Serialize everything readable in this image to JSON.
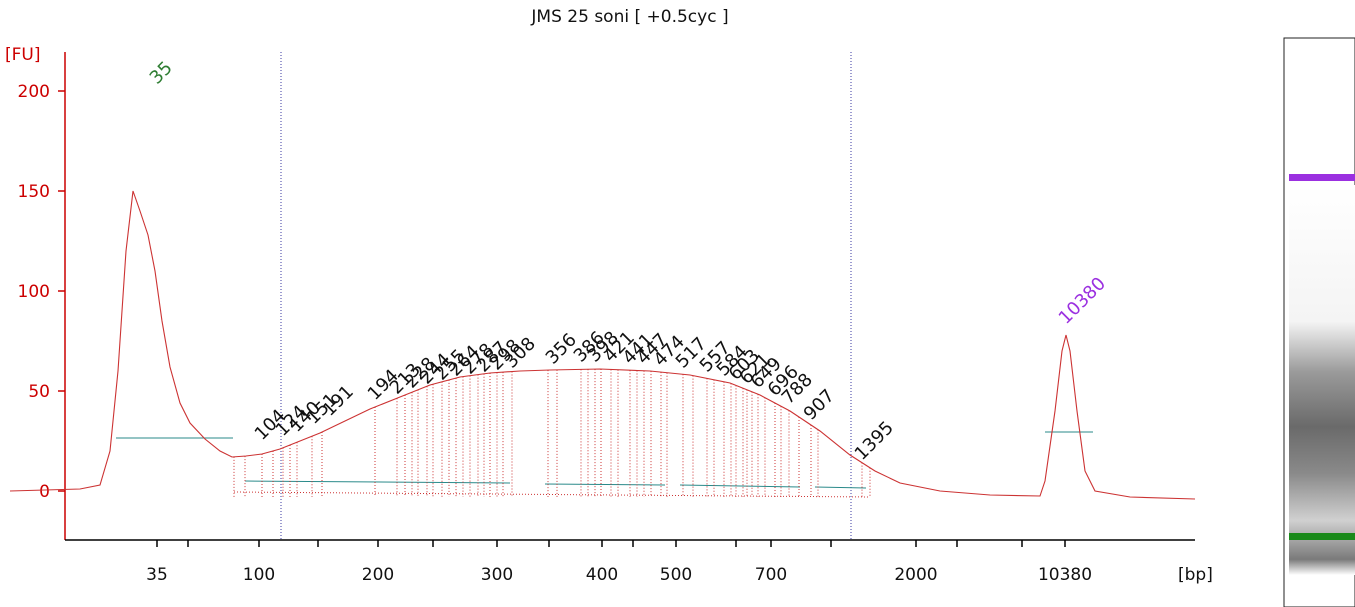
{
  "chart_data": {
    "type": "line",
    "title": "JMS 25 soni  [ +0.5cyc ]",
    "ylabel": "[FU]",
    "xlabel": "[bp]",
    "y_ticks": [
      0,
      50,
      100,
      150,
      200
    ],
    "x_ticks": [
      "35",
      "100",
      "200",
      "300",
      "400",
      "500",
      "700",
      "2000",
      "10380"
    ],
    "ylim": [
      -25,
      218
    ],
    "grid": false,
    "series": [
      {
        "values": [
          [
            10,
            0
          ],
          [
            80,
            1
          ],
          [
            100,
            3
          ],
          [
            110,
            20
          ],
          [
            118,
            60
          ],
          [
            126,
            120
          ],
          [
            133,
            150
          ],
          [
            140,
            140
          ],
          [
            148,
            128
          ],
          [
            155,
            110
          ],
          [
            162,
            85
          ],
          [
            170,
            62
          ],
          [
            180,
            44
          ],
          [
            190,
            34
          ],
          [
            205,
            26
          ],
          [
            220,
            20
          ],
          [
            232,
            17
          ],
          [
            246,
            17.5
          ],
          [
            262,
            18.5
          ],
          [
            280,
            21
          ],
          [
            300,
            25
          ],
          [
            320,
            29
          ],
          [
            345,
            35
          ],
          [
            370,
            41
          ],
          [
            400,
            47
          ],
          [
            430,
            53
          ],
          [
            460,
            57
          ],
          [
            490,
            59
          ],
          [
            520,
            60
          ],
          [
            550,
            60.5
          ],
          [
            600,
            61
          ],
          [
            650,
            60
          ],
          [
            690,
            58
          ],
          [
            730,
            54
          ],
          [
            760,
            48
          ],
          [
            790,
            40
          ],
          [
            820,
            30
          ],
          [
            850,
            18
          ],
          [
            875,
            10
          ],
          [
            900,
            4
          ],
          [
            940,
            0
          ],
          [
            990,
            -2
          ],
          [
            1040,
            -2.5
          ],
          [
            1045,
            5
          ],
          [
            1055,
            40
          ],
          [
            1062,
            70
          ],
          [
            1066,
            78
          ],
          [
            1070,
            70
          ],
          [
            1077,
            40
          ],
          [
            1085,
            10
          ],
          [
            1095,
            0
          ],
          [
            1130,
            -3
          ],
          [
            1195,
            -4
          ]
        ]
      }
    ],
    "peaks": [
      {
        "label": "35",
        "x": 157,
        "y": 200,
        "color": "#2e7d32"
      },
      {
        "label": "104",
        "x": 262,
        "y": 22
      },
      {
        "label": "124",
        "x": 283,
        "y": 24
      },
      {
        "label": "140",
        "x": 297,
        "y": 26
      },
      {
        "label": "151",
        "x": 314,
        "y": 30
      },
      {
        "label": "191",
        "x": 330,
        "y": 34
      },
      {
        "label": "194",
        "x": 375,
        "y": 42
      },
      {
        "label": "213",
        "x": 397,
        "y": 45
      },
      {
        "label": "228",
        "x": 412,
        "y": 48
      },
      {
        "label": "244",
        "x": 427,
        "y": 50
      },
      {
        "label": "255",
        "x": 442,
        "y": 52
      },
      {
        "label": "264",
        "x": 456,
        "y": 54
      },
      {
        "label": "278",
        "x": 470,
        "y": 55
      },
      {
        "label": "287",
        "x": 484,
        "y": 56
      },
      {
        "label": "298",
        "x": 497,
        "y": 57
      },
      {
        "label": "308",
        "x": 512,
        "y": 58
      },
      {
        "label": "356",
        "x": 553,
        "y": 60
      },
      {
        "label": "386",
        "x": 581,
        "y": 61
      },
      {
        "label": "398",
        "x": 595,
        "y": 61
      },
      {
        "label": "421",
        "x": 611,
        "y": 61
      },
      {
        "label": "441",
        "x": 630,
        "y": 60
      },
      {
        "label": "447",
        "x": 644,
        "y": 60
      },
      {
        "label": "474",
        "x": 661,
        "y": 59
      },
      {
        "label": "517",
        "x": 683,
        "y": 58
      },
      {
        "label": "557",
        "x": 707,
        "y": 56
      },
      {
        "label": "584",
        "x": 724,
        "y": 54
      },
      {
        "label": "603",
        "x": 736,
        "y": 52
      },
      {
        "label": "621",
        "x": 747,
        "y": 50
      },
      {
        "label": "649",
        "x": 758,
        "y": 48
      },
      {
        "label": "696",
        "x": 775,
        "y": 44
      },
      {
        "label": "788",
        "x": 789,
        "y": 40
      },
      {
        "label": "907",
        "x": 811,
        "y": 32
      },
      {
        "label": "1395",
        "x": 862,
        "y": 12
      },
      {
        "label": "10380",
        "x": 1066,
        "y": 80,
        "color": "#9b30e0"
      }
    ],
    "gel_lane": {
      "upper_marker_color": "#9b30e0",
      "lower_marker_color": "#1a8a1a"
    }
  }
}
